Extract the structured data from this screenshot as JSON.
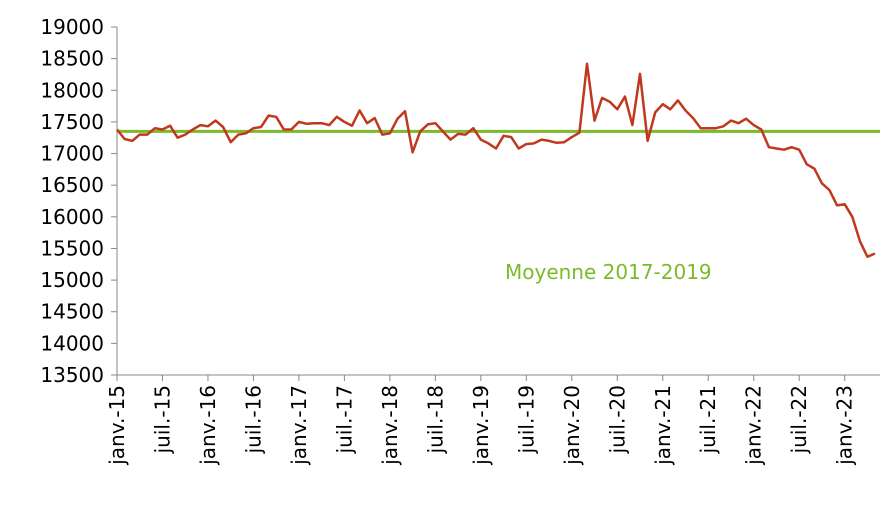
{
  "chart_data": {
    "type": "line",
    "categories": [
      "janv.-15",
      null,
      null,
      null,
      null,
      null,
      "juil.-15",
      null,
      null,
      null,
      null,
      null,
      "janv.-16",
      null,
      null,
      null,
      null,
      null,
      "juil.-16",
      null,
      null,
      null,
      null,
      null,
      "janv.-17",
      null,
      null,
      null,
      null,
      null,
      "juil.-17",
      null,
      null,
      null,
      null,
      null,
      "janv.-18",
      null,
      null,
      null,
      null,
      null,
      "juil.-18",
      null,
      null,
      null,
      null,
      null,
      "janv.-19",
      null,
      null,
      null,
      null,
      null,
      "juil.-19",
      null,
      null,
      null,
      null,
      null,
      "janv.-20",
      null,
      null,
      null,
      null,
      null,
      "juil.-20",
      null,
      null,
      null,
      null,
      null,
      "janv.-21",
      null,
      null,
      null,
      null,
      null,
      "juil.-21",
      null,
      null,
      null,
      null,
      null,
      "janv.-22",
      null,
      null,
      null,
      null,
      null,
      "juil.-22",
      null,
      null,
      null,
      null,
      null,
      "janv.-23",
      null,
      null,
      null,
      null
    ],
    "series": [
      {
        "color": "#c0391f",
        "values": [
          17380,
          17230,
          17200,
          17300,
          17300,
          17400,
          17380,
          17440,
          17250,
          17300,
          17380,
          17450,
          17430,
          17520,
          17420,
          17180,
          17300,
          17320,
          17400,
          17420,
          17600,
          17580,
          17380,
          17380,
          17500,
          17470,
          17480,
          17480,
          17450,
          17580,
          17500,
          17440,
          17680,
          17480,
          17560,
          17300,
          17320,
          17550,
          17670,
          17020,
          17350,
          17460,
          17480,
          17350,
          17220,
          17310,
          17300,
          17400,
          17220,
          17160,
          17080,
          17280,
          17260,
          17080,
          17150,
          17160,
          17220,
          17200,
          17170,
          17180,
          17260,
          17330,
          18420,
          17520,
          17880,
          17820,
          17700,
          17900,
          17450,
          18260,
          17200,
          17650,
          17780,
          17700,
          17840,
          17680,
          17560,
          17400,
          17400,
          17400,
          17430,
          17520,
          17480,
          17550,
          17450,
          17380,
          17100,
          17080,
          17060,
          17100,
          17060,
          16830,
          16760,
          16530,
          16420,
          16180,
          16200,
          16000,
          15620,
          15370,
          15420
        ]
      }
    ],
    "reference": {
      "label": "Moyenne 2017-2019",
      "value": 17350,
      "color": "#7cba2a"
    },
    "ylim": [
      13500,
      19000
    ],
    "yticks": [
      13500,
      14000,
      14500,
      15000,
      15500,
      16000,
      16500,
      17000,
      17500,
      18000,
      18500,
      19000
    ],
    "grid": false
  }
}
